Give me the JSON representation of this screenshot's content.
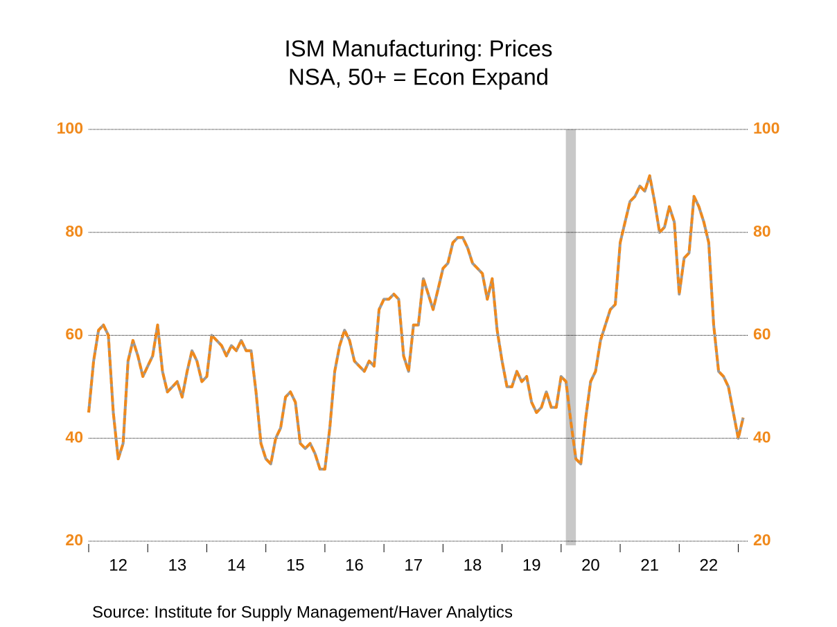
{
  "chart_data": {
    "type": "line",
    "title": "ISM Manufacturing: Prices",
    "subtitle": "NSA, 50+ = Econ Expand",
    "source": "Source:  Institute for Supply Management/Haver Analytics",
    "color": "#f0891b",
    "shade_color": "#c8c8c8",
    "shaded": [
      2020.08,
      2020.25
    ],
    "grid": true,
    "ylim": [
      20,
      100
    ],
    "yticks": [
      20,
      40,
      60,
      80,
      100
    ],
    "xlim": [
      2012,
      2023.17
    ],
    "xticks": [
      {
        "value": 2012.5,
        "label": "12"
      },
      {
        "value": 2013.5,
        "label": "13"
      },
      {
        "value": 2014.5,
        "label": "14"
      },
      {
        "value": 2015.5,
        "label": "15"
      },
      {
        "value": 2016.5,
        "label": "16"
      },
      {
        "value": 2017.5,
        "label": "17"
      },
      {
        "value": 2018.5,
        "label": "18"
      },
      {
        "value": 2019.5,
        "label": "19"
      },
      {
        "value": 2020.5,
        "label": "20"
      },
      {
        "value": 2021.5,
        "label": "21"
      },
      {
        "value": 2022.5,
        "label": "22"
      }
    ],
    "x": [
      2012,
      2012.083,
      2012.167,
      2012.25,
      2012.333,
      2012.417,
      2012.5,
      2012.583,
      2012.667,
      2012.75,
      2012.833,
      2012.917,
      2013,
      2013.083,
      2013.167,
      2013.25,
      2013.333,
      2013.417,
      2013.5,
      2013.583,
      2013.667,
      2013.75,
      2013.833,
      2013.917,
      2014,
      2014.083,
      2014.167,
      2014.25,
      2014.333,
      2014.417,
      2014.5,
      2014.583,
      2014.667,
      2014.75,
      2014.833,
      2014.917,
      2015,
      2015.083,
      2015.167,
      2015.25,
      2015.333,
      2015.417,
      2015.5,
      2015.583,
      2015.667,
      2015.75,
      2015.833,
      2015.917,
      2016,
      2016.083,
      2016.167,
      2016.25,
      2016.333,
      2016.417,
      2016.5,
      2016.583,
      2016.667,
      2016.75,
      2016.833,
      2016.917,
      2017,
      2017.083,
      2017.167,
      2017.25,
      2017.333,
      2017.417,
      2017.5,
      2017.583,
      2017.667,
      2017.75,
      2017.833,
      2017.917,
      2018,
      2018.083,
      2018.167,
      2018.25,
      2018.333,
      2018.417,
      2018.5,
      2018.583,
      2018.667,
      2018.75,
      2018.833,
      2018.917,
      2019,
      2019.083,
      2019.167,
      2019.25,
      2019.333,
      2019.417,
      2019.5,
      2019.583,
      2019.667,
      2019.75,
      2019.833,
      2019.917,
      2020,
      2020.083,
      2020.167,
      2020.25,
      2020.333,
      2020.417,
      2020.5,
      2020.583,
      2020.667,
      2020.75,
      2020.833,
      2020.917,
      2021,
      2021.083,
      2021.167,
      2021.25,
      2021.333,
      2021.417,
      2021.5,
      2021.583,
      2021.667,
      2021.75,
      2021.833,
      2021.917,
      2022,
      2022.083,
      2022.167,
      2022.25,
      2022.333,
      2022.417,
      2022.5,
      2022.583,
      2022.667,
      2022.75,
      2022.833,
      2022.917,
      2023,
      2023.083
    ],
    "values": [
      45,
      55,
      61,
      62,
      60,
      45,
      36,
      39,
      55,
      59,
      56,
      52,
      54,
      56,
      62,
      53,
      49,
      50,
      51,
      48,
      53,
      57,
      55,
      51,
      52,
      60,
      59,
      58,
      56,
      58,
      57,
      59,
      57,
      57,
      49,
      39,
      36,
      35,
      40,
      42,
      48,
      49,
      47,
      39,
      38,
      39,
      37,
      34,
      34,
      42,
      53,
      58,
      61,
      59,
      55,
      54,
      53,
      55,
      54,
      65,
      67,
      67,
      68,
      67,
      56,
      53,
      62,
      62,
      71,
      68,
      65,
      69,
      73,
      74,
      78,
      79,
      79,
      77,
      74,
      73,
      72,
      67,
      71,
      61,
      55,
      50,
      50,
      53,
      51,
      52,
      47,
      45,
      46,
      49,
      46,
      46,
      52,
      51,
      43,
      36,
      35,
      44,
      51,
      53,
      59,
      62,
      65,
      66,
      78,
      82,
      86,
      87,
      89,
      88,
      91,
      86,
      80,
      81,
      85,
      82,
      68,
      75,
      76,
      87,
      85,
      82,
      78,
      62,
      53,
      52,
      50,
      45,
      40,
      44
    ]
  }
}
